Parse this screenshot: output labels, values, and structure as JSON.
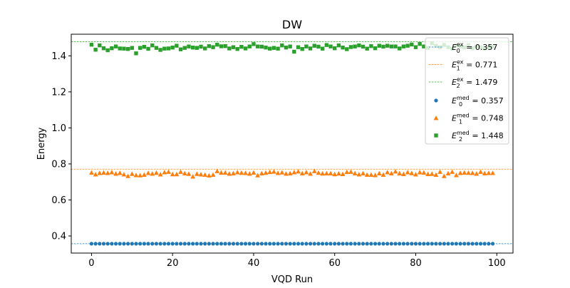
{
  "chart_data": {
    "type": "scatter",
    "title": "DW",
    "xlabel": "VQD Run",
    "ylabel": "Energy",
    "xlim": [
      -5,
      104
    ],
    "ylim": [
      0.305,
      1.52
    ],
    "xticks": [
      0,
      20,
      40,
      60,
      80,
      100
    ],
    "xtick_labels": [
      "0",
      "20",
      "40",
      "60",
      "80",
      "100"
    ],
    "yticks": [
      0.4,
      0.6,
      0.8,
      1.0,
      1.2,
      1.4
    ],
    "ytick_labels": [
      "0.4",
      "0.6",
      "0.8",
      "1.0",
      "1.2",
      "1.4"
    ],
    "grid": false,
    "legend_position": "top-right",
    "reference_lines": [
      {
        "label_base": "E",
        "label_sup": "ex",
        "label_sub": "0",
        "label_value": " = 0.357",
        "y": 0.357,
        "color": "#1f77b4"
      },
      {
        "label_base": "E",
        "label_sup": "ex",
        "label_sub": "1",
        "label_value": " = 0.771",
        "y": 0.771,
        "color": "#ff7f0e"
      },
      {
        "label_base": "E",
        "label_sup": "ex",
        "label_sub": "2",
        "label_value": " = 1.479",
        "y": 1.479,
        "color": "#2ca02c"
      }
    ],
    "series": [
      {
        "label_base": "E",
        "label_sup": "med",
        "label_sub": "0",
        "label_value": " = 0.357",
        "marker": "circle",
        "color": "#1f77b4",
        "x": [
          0,
          1,
          2,
          3,
          4,
          5,
          6,
          7,
          8,
          9,
          10,
          11,
          12,
          13,
          14,
          15,
          16,
          17,
          18,
          19,
          20,
          21,
          22,
          23,
          24,
          25,
          26,
          27,
          28,
          29,
          30,
          31,
          32,
          33,
          34,
          35,
          36,
          37,
          38,
          39,
          40,
          41,
          42,
          43,
          44,
          45,
          46,
          47,
          48,
          49,
          50,
          51,
          52,
          53,
          54,
          55,
          56,
          57,
          58,
          59,
          60,
          61,
          62,
          63,
          64,
          65,
          66,
          67,
          68,
          69,
          70,
          71,
          72,
          73,
          74,
          75,
          76,
          77,
          78,
          79,
          80,
          81,
          82,
          83,
          84,
          85,
          86,
          87,
          88,
          89,
          90,
          91,
          92,
          93,
          94,
          95,
          96,
          97,
          98,
          99
        ],
        "y": [
          0.357,
          0.357,
          0.357,
          0.357,
          0.357,
          0.357,
          0.357,
          0.357,
          0.357,
          0.357,
          0.357,
          0.357,
          0.357,
          0.357,
          0.357,
          0.357,
          0.357,
          0.357,
          0.357,
          0.357,
          0.357,
          0.357,
          0.357,
          0.357,
          0.357,
          0.357,
          0.357,
          0.357,
          0.357,
          0.357,
          0.357,
          0.357,
          0.357,
          0.357,
          0.357,
          0.357,
          0.357,
          0.357,
          0.357,
          0.357,
          0.357,
          0.357,
          0.357,
          0.357,
          0.357,
          0.357,
          0.357,
          0.357,
          0.357,
          0.357,
          0.357,
          0.357,
          0.357,
          0.357,
          0.357,
          0.357,
          0.357,
          0.357,
          0.357,
          0.357,
          0.357,
          0.357,
          0.357,
          0.357,
          0.357,
          0.357,
          0.357,
          0.357,
          0.357,
          0.357,
          0.357,
          0.357,
          0.357,
          0.357,
          0.357,
          0.357,
          0.357,
          0.357,
          0.357,
          0.357,
          0.357,
          0.357,
          0.357,
          0.357,
          0.357,
          0.357,
          0.357,
          0.357,
          0.357,
          0.357,
          0.357,
          0.357,
          0.357,
          0.357,
          0.357,
          0.357,
          0.357,
          0.357,
          0.357,
          0.357
        ]
      },
      {
        "label_base": "E",
        "label_sup": "med",
        "label_sub": "1",
        "label_value": " = 0.748",
        "marker": "triangle",
        "color": "#ff7f0e",
        "x": [
          0,
          1,
          2,
          3,
          4,
          5,
          6,
          7,
          8,
          9,
          10,
          11,
          12,
          13,
          14,
          15,
          16,
          17,
          18,
          19,
          20,
          21,
          22,
          23,
          24,
          25,
          26,
          27,
          28,
          29,
          30,
          31,
          32,
          33,
          34,
          35,
          36,
          37,
          38,
          39,
          40,
          41,
          42,
          43,
          44,
          45,
          46,
          47,
          48,
          49,
          50,
          51,
          52,
          53,
          54,
          55,
          56,
          57,
          58,
          59,
          60,
          61,
          62,
          63,
          64,
          65,
          66,
          67,
          68,
          69,
          70,
          71,
          72,
          73,
          74,
          75,
          76,
          77,
          78,
          79,
          80,
          81,
          82,
          83,
          84,
          85,
          86,
          87,
          88,
          89,
          90,
          91,
          92,
          93,
          94,
          95,
          96,
          97,
          98,
          99
        ],
        "y": [
          0.752,
          0.742,
          0.75,
          0.752,
          0.75,
          0.754,
          0.746,
          0.75,
          0.742,
          0.733,
          0.745,
          0.738,
          0.737,
          0.74,
          0.75,
          0.746,
          0.751,
          0.742,
          0.754,
          0.756,
          0.743,
          0.743,
          0.756,
          0.748,
          0.745,
          0.73,
          0.745,
          0.742,
          0.74,
          0.736,
          0.74,
          0.76,
          0.752,
          0.752,
          0.746,
          0.748,
          0.754,
          0.751,
          0.75,
          0.746,
          0.752,
          0.737,
          0.748,
          0.751,
          0.755,
          0.757,
          0.75,
          0.753,
          0.746,
          0.748,
          0.754,
          0.758,
          0.748,
          0.754,
          0.746,
          0.76,
          0.751,
          0.747,
          0.748,
          0.748,
          0.743,
          0.747,
          0.744,
          0.755,
          0.756,
          0.748,
          0.742,
          0.748,
          0.74,
          0.74,
          0.738,
          0.748,
          0.74,
          0.754,
          0.748,
          0.758,
          0.748,
          0.744,
          0.754,
          0.749,
          0.742,
          0.754,
          0.752,
          0.744,
          0.745,
          0.74,
          0.756,
          0.733,
          0.748,
          0.756,
          0.738,
          0.75,
          0.752,
          0.751,
          0.75,
          0.746,
          0.756,
          0.748,
          0.75,
          0.75
        ]
      },
      {
        "label_base": "E",
        "label_sup": "med",
        "label_sub": "2",
        "label_value": " = 1.448",
        "marker": "square",
        "color": "#2ca02c",
        "x": [
          0,
          1,
          2,
          3,
          4,
          5,
          6,
          7,
          8,
          9,
          10,
          11,
          12,
          13,
          14,
          15,
          16,
          17,
          18,
          19,
          20,
          21,
          22,
          23,
          24,
          25,
          26,
          27,
          28,
          29,
          30,
          31,
          32,
          33,
          34,
          35,
          36,
          37,
          38,
          39,
          40,
          41,
          42,
          43,
          44,
          45,
          46,
          47,
          48,
          49,
          50,
          51,
          52,
          53,
          54,
          55,
          56,
          57,
          58,
          59,
          60,
          61,
          62,
          63,
          64,
          65,
          66,
          67,
          68,
          69,
          70,
          71,
          72,
          73,
          74,
          75,
          76,
          77,
          78,
          79,
          80,
          81,
          82,
          83,
          84,
          85,
          86,
          87,
          88,
          89,
          90,
          91,
          92,
          93,
          94,
          95,
          96,
          97,
          98,
          99
        ],
        "y": [
          1.462,
          1.434,
          1.458,
          1.442,
          1.431,
          1.442,
          1.452,
          1.441,
          1.44,
          1.438,
          1.444,
          1.414,
          1.444,
          1.45,
          1.439,
          1.458,
          1.444,
          1.433,
          1.44,
          1.441,
          1.446,
          1.456,
          1.436,
          1.444,
          1.452,
          1.446,
          1.444,
          1.451,
          1.441,
          1.454,
          1.448,
          1.462,
          1.453,
          1.454,
          1.441,
          1.448,
          1.438,
          1.45,
          1.441,
          1.452,
          1.465,
          1.452,
          1.451,
          1.446,
          1.44,
          1.444,
          1.44,
          1.458,
          1.446,
          1.452,
          1.423,
          1.448,
          1.438,
          1.452,
          1.441,
          1.456,
          1.451,
          1.44,
          1.46,
          1.452,
          1.442,
          1.458,
          1.446,
          1.437,
          1.449,
          1.452,
          1.458,
          1.451,
          1.44,
          1.454,
          1.442,
          1.456,
          1.451,
          1.456,
          1.452,
          1.452,
          1.441,
          1.452,
          1.456,
          1.463,
          1.448,
          1.466,
          1.452,
          1.444,
          1.47,
          1.456,
          1.448,
          1.46,
          1.448,
          1.44,
          1.458,
          1.451,
          1.446,
          1.46,
          1.442,
          1.452,
          1.448,
          1.441,
          1.448,
          1.452
        ]
      }
    ]
  }
}
